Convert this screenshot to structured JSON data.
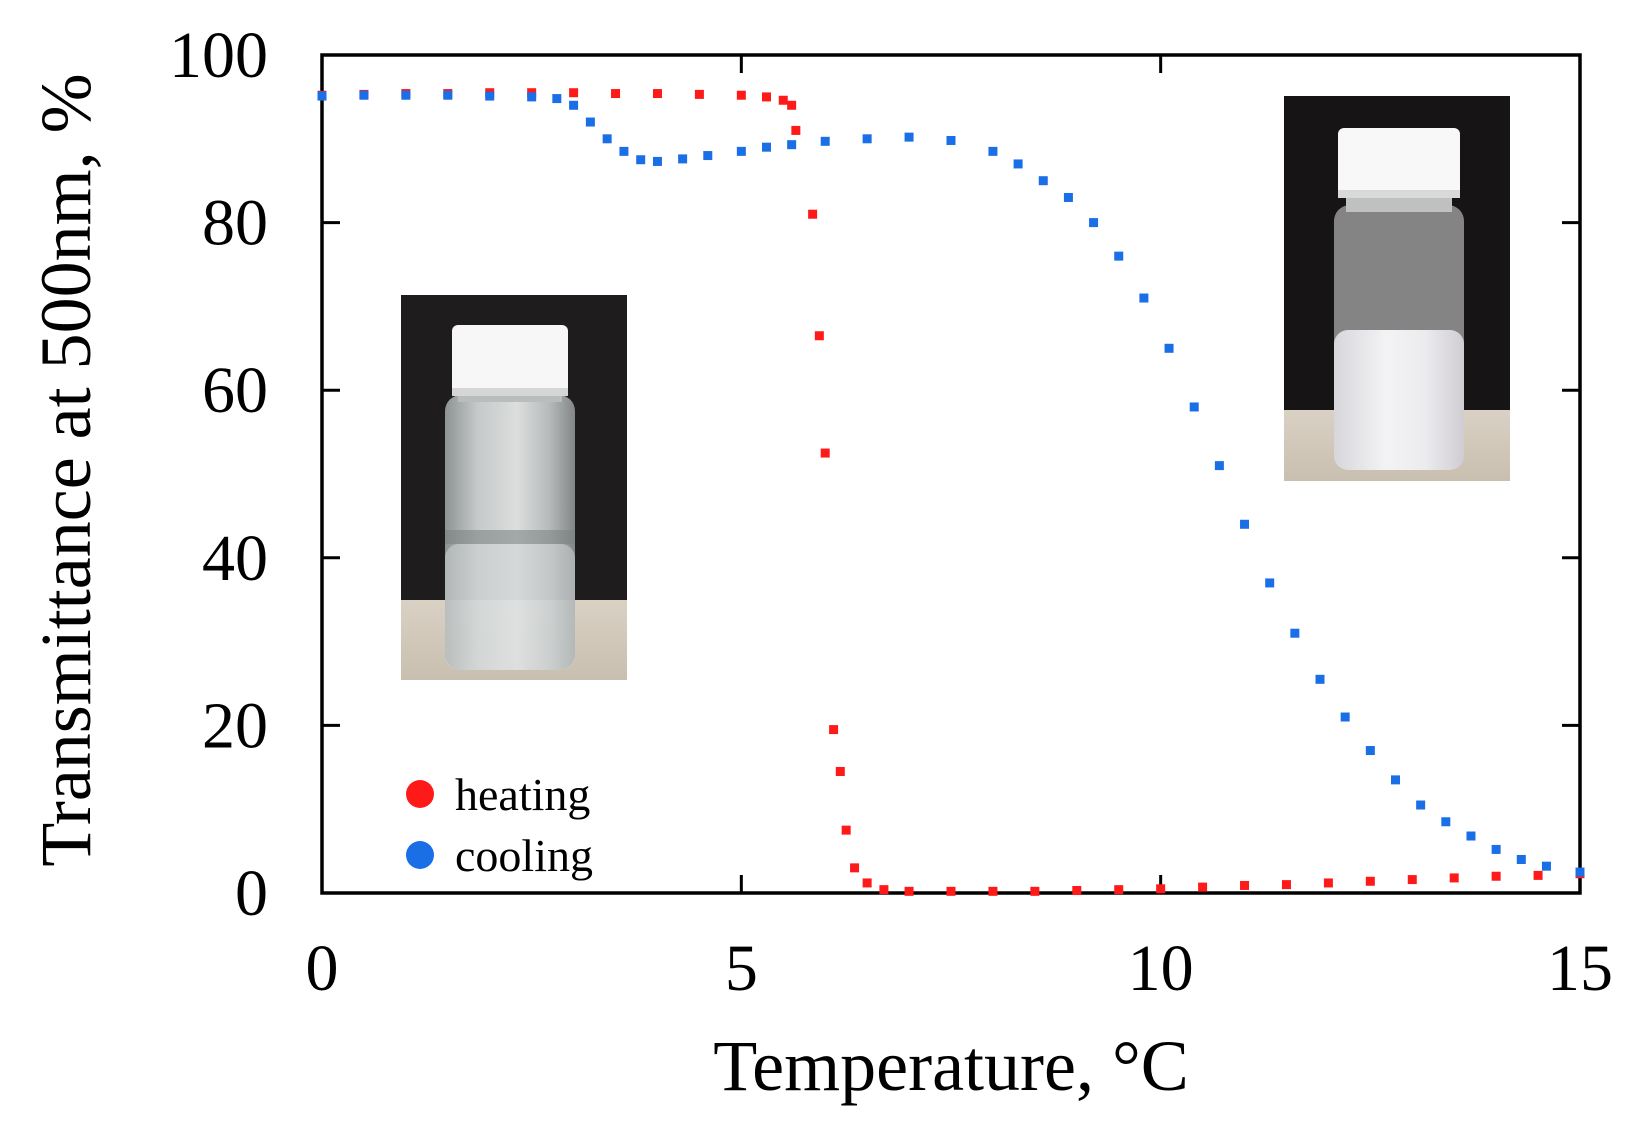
{
  "chart_data": {
    "type": "scatter",
    "title": "",
    "xlabel": "Temperature, °C",
    "ylabel": "Transmittance  at 500nm, %",
    "xlim": [
      0,
      15
    ],
    "ylim": [
      0,
      100
    ],
    "x_ticks": [
      0,
      5,
      10,
      15
    ],
    "y_ticks": [
      0,
      20,
      40,
      60,
      80,
      100
    ],
    "x_tick_labels": [
      "0",
      "5",
      "10",
      "15"
    ],
    "y_tick_labels": [
      "0",
      "20",
      "40",
      "60",
      "80",
      "100"
    ],
    "legend": {
      "position": "bottom-left"
    },
    "insets": [
      {
        "name": "vial-clear-photo",
        "description": "photo of clear vial (heating, low temperature)"
      },
      {
        "name": "vial-turbid-photo",
        "description": "photo of turbid white vial (high temperature)"
      }
    ],
    "series": [
      {
        "name": "heating",
        "color": "#ff1a1a",
        "x": [
          0.0,
          0.5,
          1.0,
          1.5,
          2.0,
          2.5,
          3.0,
          3.5,
          4.0,
          4.5,
          5.0,
          5.3,
          5.5,
          5.6,
          5.65,
          5.85,
          5.93,
          6.0,
          6.1,
          6.18,
          6.25,
          6.35,
          6.5,
          6.7,
          7.0,
          7.5,
          8.0,
          8.5,
          9.0,
          9.5,
          10.0,
          10.5,
          11.0,
          11.5,
          12.0,
          12.5,
          13.0,
          13.5,
          14.0,
          14.5,
          15.0
        ],
        "y": [
          95.2,
          95.3,
          95.4,
          95.4,
          95.5,
          95.5,
          95.5,
          95.4,
          95.4,
          95.3,
          95.2,
          95.0,
          94.6,
          94.0,
          91.0,
          81.0,
          66.5,
          52.5,
          19.5,
          14.5,
          7.5,
          3.0,
          1.2,
          0.4,
          0.2,
          0.2,
          0.2,
          0.2,
          0.3,
          0.4,
          0.5,
          0.7,
          0.9,
          1.0,
          1.2,
          1.4,
          1.6,
          1.8,
          2.0,
          2.1,
          2.3
        ]
      },
      {
        "name": "cooling",
        "color": "#1a6fe6",
        "x": [
          0.0,
          0.5,
          1.0,
          1.5,
          2.0,
          2.5,
          2.8,
          3.0,
          3.2,
          3.4,
          3.6,
          3.8,
          4.0,
          4.3,
          4.6,
          5.0,
          5.3,
          5.6,
          6.0,
          6.5,
          7.0,
          7.5,
          8.0,
          8.3,
          8.6,
          8.9,
          9.2,
          9.5,
          9.8,
          10.1,
          10.4,
          10.7,
          11.0,
          11.3,
          11.6,
          11.9,
          12.2,
          12.5,
          12.8,
          13.1,
          13.4,
          13.7,
          14.0,
          14.3,
          14.6,
          15.0
        ],
        "y": [
          95.1,
          95.2,
          95.2,
          95.2,
          95.1,
          95.0,
          94.8,
          94.0,
          92.0,
          90.0,
          88.5,
          87.5,
          87.3,
          87.6,
          88.0,
          88.5,
          89.0,
          89.3,
          89.7,
          90.0,
          90.2,
          89.8,
          88.5,
          87.0,
          85.0,
          83.0,
          80.0,
          76.0,
          71.0,
          65.0,
          58.0,
          51.0,
          44.0,
          37.0,
          31.0,
          25.5,
          21.0,
          17.0,
          13.5,
          10.5,
          8.5,
          6.8,
          5.2,
          4.0,
          3.2,
          2.5
        ]
      }
    ]
  }
}
